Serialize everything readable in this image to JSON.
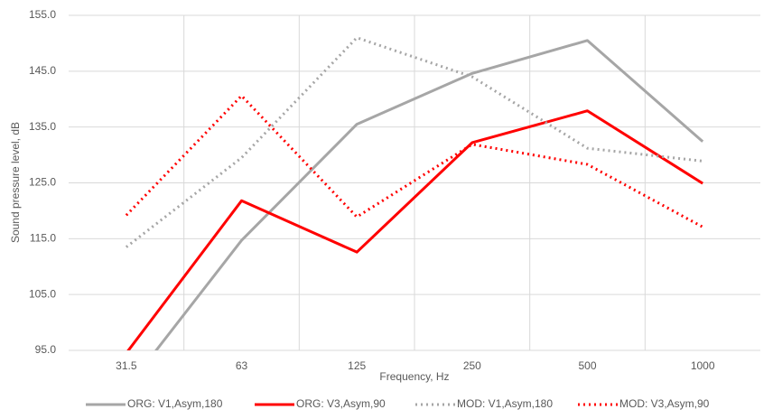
{
  "chart_data": {
    "type": "line",
    "x_label": "Frequency, Hz",
    "y_label": "Sound pressure level, dB",
    "categories": [
      "31.5",
      "63",
      "125",
      "250",
      "500",
      "1000"
    ],
    "ylim": [
      95,
      155
    ],
    "yticks": [
      {
        "value": 95,
        "label": "95.0"
      },
      {
        "value": 105,
        "label": "105.0"
      },
      {
        "value": 115,
        "label": "115.0"
      },
      {
        "value": 125,
        "label": "125.0"
      },
      {
        "value": 135,
        "label": "135.0"
      },
      {
        "value": 145,
        "label": "145.0"
      },
      {
        "value": 155,
        "label": "155.0"
      }
    ],
    "grid": true,
    "legend": "bottom",
    "series": [
      {
        "name": "ORG: V1,Asym,180",
        "color": "#a6a6a6",
        "dash": "solid",
        "values": [
          88.1,
          114.7,
          135.5,
          144.6,
          150.5,
          132.4
        ]
      },
      {
        "name": "ORG: V3,Asym,90",
        "color": "#ff0000",
        "dash": "solid",
        "values": [
          94.5,
          121.8,
          112.6,
          132.2,
          137.9,
          124.9
        ]
      },
      {
        "name": "MOD: V1,Asym,180",
        "color": "#a6a6a6",
        "dash": "dot",
        "values": [
          113.5,
          129.5,
          151.0,
          144.0,
          131.2,
          128.9
        ]
      },
      {
        "name": "MOD: V3,Asym,90",
        "color": "#ff0000",
        "dash": "dot",
        "values": [
          119.2,
          140.6,
          118.9,
          131.9,
          128.3,
          117.1
        ]
      }
    ]
  }
}
